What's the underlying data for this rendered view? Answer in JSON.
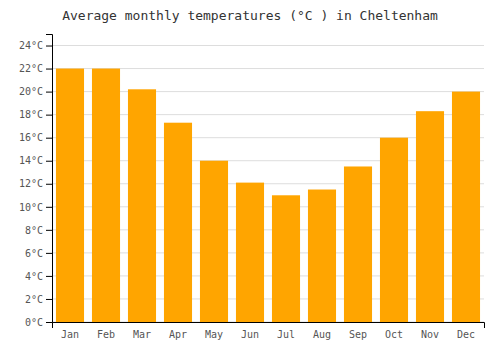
{
  "chart_data": {
    "type": "bar",
    "title": "Average monthly temperatures (°C ) in Cheltenham",
    "categories": [
      "Jan",
      "Feb",
      "Mar",
      "Apr",
      "May",
      "Jun",
      "Jul",
      "Aug",
      "Sep",
      "Oct",
      "Nov",
      "Dec"
    ],
    "values": [
      22.0,
      22.0,
      20.2,
      17.3,
      14.0,
      12.1,
      11.0,
      11.5,
      13.5,
      16.0,
      18.3,
      20.0
    ],
    "color": "#FFA500",
    "ylim": [
      0,
      25
    ],
    "yticks": [
      {
        "value": 0,
        "label": "0°C"
      },
      {
        "value": 2,
        "label": "2°C"
      },
      {
        "value": 4,
        "label": "4°C"
      },
      {
        "value": 6,
        "label": "6°C"
      },
      {
        "value": 8,
        "label": "8°C"
      },
      {
        "value": 10,
        "label": "10°C"
      },
      {
        "value": 12,
        "label": "12°C"
      },
      {
        "value": 14,
        "label": "14°C"
      },
      {
        "value": 16,
        "label": "16°C"
      },
      {
        "value": 18,
        "label": "18°C"
      },
      {
        "value": 20,
        "label": "20°C"
      },
      {
        "value": 22,
        "label": "22°C"
      },
      {
        "value": 24,
        "label": "24°C"
      }
    ],
    "grid": true
  }
}
